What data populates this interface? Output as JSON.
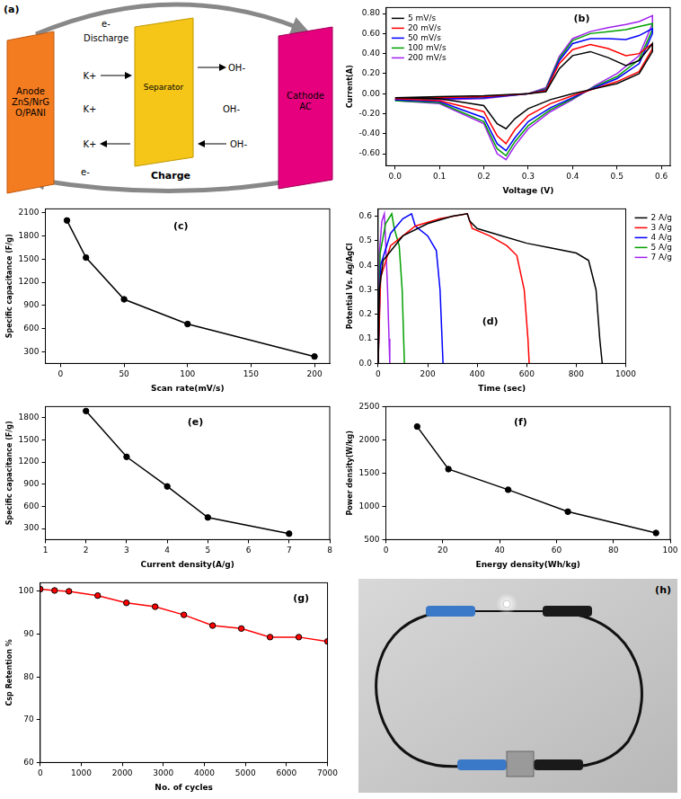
{
  "diagram": {
    "label": "(a)",
    "anode": "Anode ZnS/NrGO/PANI",
    "separator": "Separator",
    "cathode": "Cathode AC",
    "discharge": "Discharge",
    "charge": "Charge",
    "electron": "e-",
    "cation": "K+",
    "anion": "OH-"
  },
  "chart_data": [
    {
      "type": "line",
      "annotation": "(b)",
      "xlabel": "Voltage (V)",
      "ylabel": "Current(A)",
      "xlim": [
        -0.02,
        0.62
      ],
      "xticks": [
        {
          "value": 0,
          "label": "0.0"
        },
        0.1,
        0.2,
        0.3,
        0.4,
        0.5,
        0.6
      ],
      "ylim": [
        -0.72,
        0.86
      ],
      "yticks": [
        {
          "value": -0.6,
          "label": "-0.60"
        },
        {
          "value": -0.4,
          "label": "-0.40"
        },
        {
          "value": -0.2,
          "label": "-0.20"
        },
        {
          "value": 0,
          "label": "0.00"
        },
        {
          "value": 0.2,
          "label": "0.20"
        },
        {
          "value": 0.4,
          "label": "0.40"
        },
        {
          "value": 0.6,
          "label": "0.60"
        },
        {
          "value": 0.8,
          "label": "0.80"
        }
      ],
      "grid": false,
      "legend": "top-left",
      "marker": "none",
      "series": [
        {
          "name": "5 mV/s",
          "color": "#000000",
          "x": [
            0,
            0.1,
            0.2,
            0.3,
            0.34,
            0.37,
            0.4,
            0.44,
            0.48,
            0.52,
            0.55,
            0.58,
            0.58,
            0.55,
            0.5,
            0.45,
            0.4,
            0.35,
            0.3,
            0.27,
            0.25,
            0.23,
            0.2,
            0.1,
            0
          ],
          "values": [
            -0.04,
            -0.03,
            -0.02,
            0.0,
            0.02,
            0.25,
            0.38,
            0.42,
            0.36,
            0.28,
            0.33,
            0.5,
            0.42,
            0.2,
            0.1,
            0.05,
            0.0,
            -0.06,
            -0.15,
            -0.25,
            -0.35,
            -0.3,
            -0.12,
            -0.05,
            -0.04
          ]
        },
        {
          "name": "20 mV/s",
          "color": "#ff0000",
          "x": [
            0,
            0.1,
            0.2,
            0.3,
            0.34,
            0.37,
            0.4,
            0.44,
            0.48,
            0.52,
            0.55,
            0.58,
            0.58,
            0.55,
            0.5,
            0.45,
            0.4,
            0.35,
            0.3,
            0.27,
            0.25,
            0.23,
            0.2,
            0.1,
            0
          ],
          "values": [
            -0.05,
            -0.04,
            -0.03,
            0.0,
            0.03,
            0.3,
            0.44,
            0.49,
            0.45,
            0.38,
            0.4,
            0.5,
            0.45,
            0.22,
            0.12,
            0.05,
            -0.02,
            -0.1,
            -0.22,
            -0.36,
            -0.5,
            -0.42,
            -0.18,
            -0.07,
            -0.05
          ]
        },
        {
          "name": "50 mV/s",
          "color": "#0000ff",
          "x": [
            0,
            0.1,
            0.2,
            0.3,
            0.34,
            0.37,
            0.4,
            0.44,
            0.48,
            0.52,
            0.55,
            0.58,
            0.58,
            0.55,
            0.5,
            0.45,
            0.4,
            0.35,
            0.3,
            0.27,
            0.25,
            0.23,
            0.2,
            0.1,
            0
          ],
          "values": [
            -0.05,
            -0.05,
            -0.04,
            0.0,
            0.04,
            0.33,
            0.5,
            0.55,
            0.55,
            0.54,
            0.58,
            0.65,
            0.6,
            0.3,
            0.15,
            0.06,
            -0.04,
            -0.14,
            -0.28,
            -0.44,
            -0.57,
            -0.5,
            -0.24,
            -0.08,
            -0.06
          ]
        },
        {
          "name": "100 mV/s",
          "color": "#00a000",
          "x": [
            0,
            0.1,
            0.2,
            0.3,
            0.34,
            0.37,
            0.4,
            0.44,
            0.48,
            0.52,
            0.55,
            0.58,
            0.58,
            0.55,
            0.5,
            0.45,
            0.4,
            0.35,
            0.3,
            0.27,
            0.25,
            0.23,
            0.2,
            0.1,
            0
          ],
          "values": [
            -0.06,
            -0.05,
            -0.04,
            0.0,
            0.05,
            0.35,
            0.53,
            0.6,
            0.62,
            0.64,
            0.67,
            0.7,
            0.64,
            0.34,
            0.17,
            0.07,
            -0.05,
            -0.16,
            -0.32,
            -0.48,
            -0.62,
            -0.55,
            -0.28,
            -0.09,
            -0.07
          ]
        },
        {
          "name": "200 mV/s",
          "color": "#a020f0",
          "x": [
            0,
            0.1,
            0.2,
            0.3,
            0.34,
            0.37,
            0.4,
            0.44,
            0.48,
            0.52,
            0.55,
            0.58,
            0.58,
            0.55,
            0.5,
            0.45,
            0.4,
            0.35,
            0.3,
            0.27,
            0.25,
            0.23,
            0.2,
            0.1,
            0
          ],
          "values": [
            -0.06,
            -0.06,
            -0.05,
            0.0,
            0.06,
            0.37,
            0.55,
            0.62,
            0.66,
            0.69,
            0.72,
            0.78,
            0.7,
            0.38,
            0.2,
            0.08,
            -0.06,
            -0.18,
            -0.35,
            -0.52,
            -0.66,
            -0.6,
            -0.3,
            -0.1,
            -0.07
          ]
        }
      ]
    },
    {
      "type": "line",
      "annotation": "(c)",
      "xlabel": "Scan rate(mV/s)",
      "ylabel": "Specific capacitance (F/g)",
      "xlim": [
        -12,
        212
      ],
      "xticks": [
        0,
        50,
        100,
        150,
        200
      ],
      "ylim": [
        150,
        2150
      ],
      "yticks": [
        300,
        600,
        900,
        1200,
        1500,
        1800,
        2100
      ],
      "grid": false,
      "marker": "circle",
      "color": "#000000",
      "x": [
        5,
        20,
        50,
        100,
        200
      ],
      "values": [
        2000,
        1520,
        980,
        660,
        240
      ]
    },
    {
      "type": "line",
      "annotation": "(d)",
      "xlabel": "Time (sec)",
      "ylabel": "Potential Vs. Ag/AgCl",
      "xlim": [
        0,
        1000
      ],
      "xticks": [
        0,
        200,
        400,
        600,
        800,
        1000
      ],
      "ylim": [
        0,
        0.63
      ],
      "yticks": [
        {
          "value": 0,
          "label": "0.0"
        },
        0.1,
        0.2,
        0.3,
        0.4,
        0.5,
        0.6
      ],
      "grid": false,
      "legend": "right",
      "marker": "none",
      "series": [
        {
          "name": "2 A/g",
          "color": "#000000",
          "x": [
            0,
            5,
            20,
            100,
            200,
            300,
            360,
            370,
            400,
            500,
            600,
            700,
            800,
            850,
            880,
            895,
            905
          ],
          "values": [
            0,
            0.3,
            0.42,
            0.52,
            0.57,
            0.6,
            0.61,
            0.58,
            0.55,
            0.52,
            0.49,
            0.47,
            0.45,
            0.42,
            0.3,
            0.1,
            0
          ]
        },
        {
          "name": "3 A/g",
          "color": "#ff0000",
          "x": [
            0,
            10,
            50,
            150,
            250,
            360,
            380,
            450,
            520,
            560,
            590,
            605,
            610
          ],
          "values": [
            0,
            0.35,
            0.48,
            0.56,
            0.59,
            0.61,
            0.55,
            0.52,
            0.48,
            0.44,
            0.3,
            0.1,
            0
          ]
        },
        {
          "name": "4 A/g",
          "color": "#0000ff",
          "x": [
            0,
            10,
            50,
            100,
            135,
            150,
            200,
            235,
            250,
            258,
            262
          ],
          "values": [
            0,
            0.4,
            0.53,
            0.59,
            0.61,
            0.56,
            0.52,
            0.46,
            0.3,
            0.1,
            0
          ]
        },
        {
          "name": "5 A/g",
          "color": "#00a000",
          "x": [
            0,
            8,
            30,
            55,
            65,
            85,
            97,
            103,
            106
          ],
          "values": [
            0,
            0.45,
            0.57,
            0.61,
            0.55,
            0.48,
            0.3,
            0.1,
            0
          ]
        },
        {
          "name": "7 A/g",
          "color": "#a020f0",
          "x": [
            0,
            5,
            15,
            25,
            30,
            38,
            44,
            47
          ],
          "values": [
            0,
            0.45,
            0.58,
            0.61,
            0.5,
            0.3,
            0.1,
            0
          ]
        }
      ]
    },
    {
      "type": "line",
      "annotation": "(e)",
      "xlabel": "Current density(A/g)",
      "ylabel": "Specific capacitance (F/g)",
      "xlim": [
        1,
        8
      ],
      "xticks": [
        1,
        2,
        3,
        4,
        5,
        6,
        7,
        8
      ],
      "ylim": [
        150,
        1950
      ],
      "yticks": [
        300,
        600,
        900,
        1200,
        1500,
        1800
      ],
      "grid": false,
      "marker": "circle",
      "color": "#000000",
      "x": [
        2,
        3,
        4,
        5,
        7
      ],
      "values": [
        1890,
        1270,
        870,
        450,
        230
      ]
    },
    {
      "type": "line",
      "annotation": "(f)",
      "xlabel": "Energy density(Wh/kg)",
      "ylabel": "Power density(W/kg)",
      "xlim": [
        0,
        100
      ],
      "xticks": [
        0,
        20,
        40,
        60,
        80,
        100
      ],
      "ylim": [
        500,
        2500
      ],
      "yticks": [
        500,
        1000,
        1500,
        2000,
        2500
      ],
      "grid": false,
      "marker": "circle",
      "color": "#000000",
      "x": [
        11,
        22,
        43,
        64,
        95
      ],
      "values": [
        2200,
        1560,
        1250,
        920,
        600
      ]
    },
    {
      "type": "line",
      "annotation": "(g)",
      "xlabel": "No. of cycles",
      "ylabel": "Csp Retention %",
      "xlim": [
        0,
        7000
      ],
      "xticks": [
        0,
        1000,
        2000,
        3000,
        4000,
        5000,
        6000,
        7000
      ],
      "ylim": [
        60,
        102
      ],
      "yticks": [
        60,
        70,
        80,
        90,
        100
      ],
      "grid": false,
      "marker": "circle",
      "color": "#ff0000",
      "x": [
        0,
        350,
        700,
        1400,
        2100,
        2800,
        3500,
        4200,
        4900,
        5600,
        6300,
        7000
      ],
      "values": [
        100.5,
        100.2,
        100,
        99,
        97.3,
        96.4,
        94.5,
        92,
        91.3,
        89.3,
        89.3,
        88.3
      ]
    }
  ],
  "photo": {
    "label": "(h)"
  }
}
